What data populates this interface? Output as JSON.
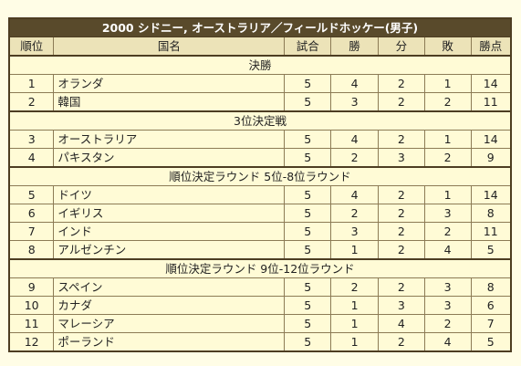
{
  "title": "2000 シドニー, オーストラリア／フィールドホッケー(男子)",
  "headers": {
    "rank": "順位",
    "country": "国名",
    "played": "試合",
    "wins": "勝",
    "draws": "分",
    "losses": "敗",
    "points": "勝点"
  },
  "sections": [
    {
      "label": "決勝",
      "rows": [
        {
          "rank": "1",
          "country": "オランダ",
          "played": "5",
          "wins": "4",
          "draws": "2",
          "losses": "1",
          "points": "14"
        },
        {
          "rank": "2",
          "country": "韓国",
          "played": "5",
          "wins": "3",
          "draws": "2",
          "losses": "2",
          "points": "11"
        }
      ]
    },
    {
      "label": "3位決定戦",
      "rows": [
        {
          "rank": "3",
          "country": "オーストラリア",
          "played": "5",
          "wins": "4",
          "draws": "2",
          "losses": "1",
          "points": "14"
        },
        {
          "rank": "4",
          "country": "パキスタン",
          "played": "5",
          "wins": "2",
          "draws": "3",
          "losses": "2",
          "points": "9"
        }
      ]
    },
    {
      "label": "順位決定ラウンド 5位-8位ラウンド",
      "rows": [
        {
          "rank": "5",
          "country": "ドイツ",
          "played": "5",
          "wins": "4",
          "draws": "2",
          "losses": "1",
          "points": "14"
        },
        {
          "rank": "6",
          "country": "イギリス",
          "played": "5",
          "wins": "2",
          "draws": "2",
          "losses": "3",
          "points": "8"
        },
        {
          "rank": "7",
          "country": "インド",
          "played": "5",
          "wins": "3",
          "draws": "2",
          "losses": "2",
          "points": "11"
        },
        {
          "rank": "8",
          "country": "アルゼンチン",
          "played": "5",
          "wins": "1",
          "draws": "2",
          "losses": "4",
          "points": "5"
        }
      ]
    },
    {
      "label": "順位決定ラウンド 9位-12位ラウンド",
      "rows": [
        {
          "rank": "9",
          "country": "スペイン",
          "played": "5",
          "wins": "2",
          "draws": "2",
          "losses": "3",
          "points": "8"
        },
        {
          "rank": "10",
          "country": "カナダ",
          "played": "5",
          "wins": "1",
          "draws": "3",
          "losses": "3",
          "points": "6"
        },
        {
          "rank": "11",
          "country": "マレーシア",
          "played": "5",
          "wins": "1",
          "draws": "4",
          "losses": "2",
          "points": "7"
        },
        {
          "rank": "12",
          "country": "ポーランド",
          "played": "5",
          "wins": "1",
          "draws": "2",
          "losses": "4",
          "points": "5"
        }
      ]
    }
  ]
}
